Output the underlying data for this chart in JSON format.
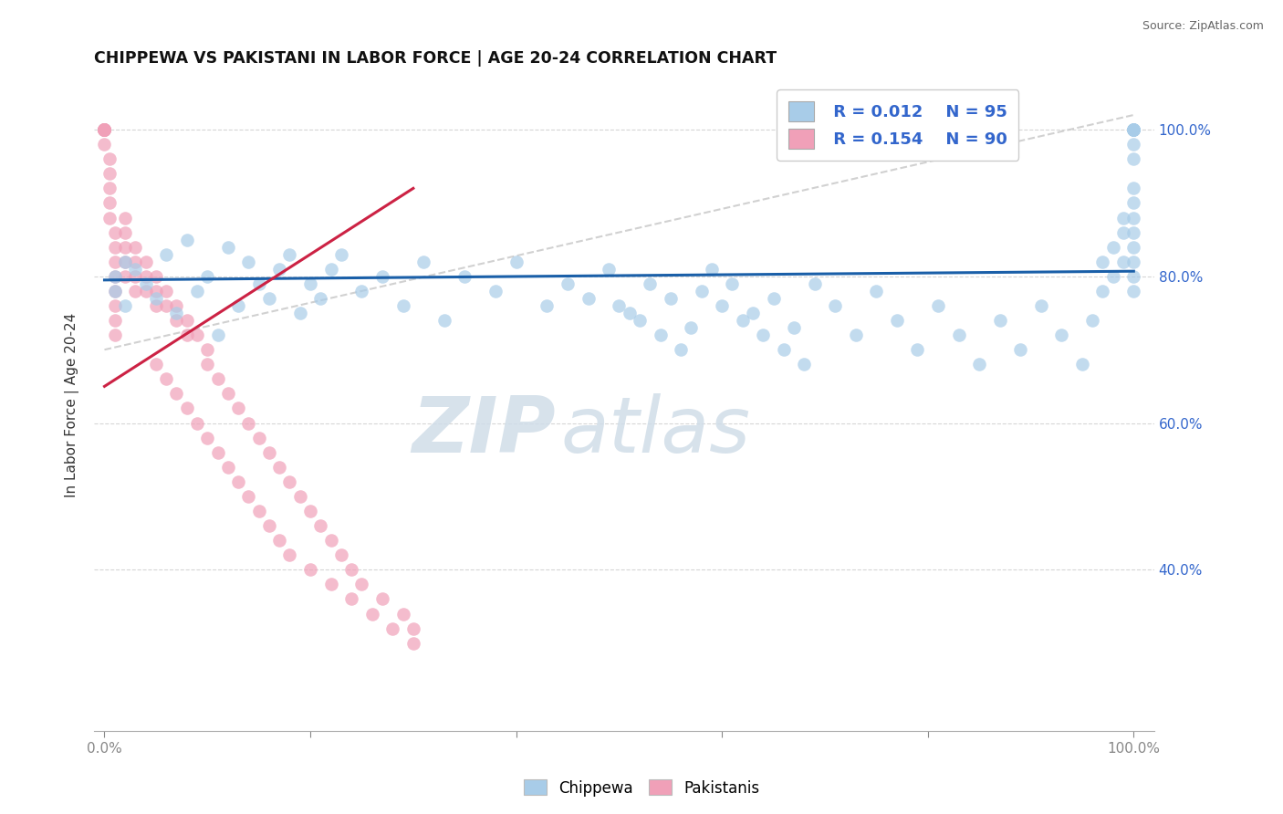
{
  "title": "CHIPPEWA VS PAKISTANI IN LABOR FORCE | AGE 20-24 CORRELATION CHART",
  "source": "Source: ZipAtlas.com",
  "ylabel": "In Labor Force | Age 20-24",
  "blue_color": "#a8cce8",
  "pink_color": "#f0a0b8",
  "trend_blue_color": "#1a5fa8",
  "trend_pink_color": "#cc2244",
  "ref_line_color": "#cccccc",
  "background_color": "#ffffff",
  "grid_color": "#cccccc",
  "legend_R1": "R = 0.012",
  "legend_N1": "N = 95",
  "legend_R2": "R = 0.154",
  "legend_N2": "N = 90",
  "watermark_zip": "ZIP",
  "watermark_atlas": "atlas",
  "chippewa_x": [
    0.01,
    0.01,
    0.02,
    0.02,
    0.03,
    0.04,
    0.05,
    0.06,
    0.07,
    0.08,
    0.09,
    0.1,
    0.11,
    0.12,
    0.13,
    0.14,
    0.15,
    0.16,
    0.17,
    0.18,
    0.19,
    0.2,
    0.21,
    0.22,
    0.23,
    0.25,
    0.27,
    0.29,
    0.31,
    0.33,
    0.35,
    0.38,
    0.4,
    0.43,
    0.45,
    0.47,
    0.49,
    0.51,
    0.53,
    0.55,
    0.57,
    0.59,
    0.61,
    0.63,
    0.65,
    0.67,
    0.69,
    0.71,
    0.73,
    0.75,
    0.77,
    0.79,
    0.81,
    0.83,
    0.85,
    0.87,
    0.89,
    0.91,
    0.93,
    0.95,
    0.96,
    0.97,
    0.97,
    0.98,
    0.98,
    0.99,
    0.99,
    0.99,
    1.0,
    1.0,
    1.0,
    1.0,
    1.0,
    1.0,
    1.0,
    1.0,
    1.0,
    1.0,
    1.0,
    1.0,
    1.0,
    1.0,
    1.0,
    1.0,
    1.0,
    0.5,
    0.52,
    0.54,
    0.56,
    0.58,
    0.6,
    0.62,
    0.64,
    0.66,
    0.68
  ],
  "chippewa_y": [
    0.8,
    0.78,
    0.82,
    0.76,
    0.81,
    0.79,
    0.77,
    0.83,
    0.75,
    0.85,
    0.78,
    0.8,
    0.72,
    0.84,
    0.76,
    0.82,
    0.79,
    0.77,
    0.81,
    0.83,
    0.75,
    0.79,
    0.77,
    0.81,
    0.83,
    0.78,
    0.8,
    0.76,
    0.82,
    0.74,
    0.8,
    0.78,
    0.82,
    0.76,
    0.79,
    0.77,
    0.81,
    0.75,
    0.79,
    0.77,
    0.73,
    0.81,
    0.79,
    0.75,
    0.77,
    0.73,
    0.79,
    0.76,
    0.72,
    0.78,
    0.74,
    0.7,
    0.76,
    0.72,
    0.68,
    0.74,
    0.7,
    0.76,
    0.72,
    0.68,
    0.74,
    0.82,
    0.78,
    0.84,
    0.8,
    0.86,
    0.82,
    0.88,
    0.9,
    0.86,
    0.88,
    0.84,
    0.82,
    0.8,
    0.78,
    0.92,
    0.96,
    0.98,
    1.0,
    1.0,
    1.0,
    1.0,
    1.0,
    1.0,
    1.0,
    0.76,
    0.74,
    0.72,
    0.7,
    0.78,
    0.76,
    0.74,
    0.72,
    0.7,
    0.68
  ],
  "pakistani_x": [
    0.0,
    0.0,
    0.0,
    0.0,
    0.0,
    0.0,
    0.0,
    0.0,
    0.0,
    0.0,
    0.0,
    0.0,
    0.0,
    0.0,
    0.0,
    0.005,
    0.005,
    0.005,
    0.005,
    0.005,
    0.01,
    0.01,
    0.01,
    0.01,
    0.01,
    0.01,
    0.01,
    0.01,
    0.02,
    0.02,
    0.02,
    0.02,
    0.02,
    0.03,
    0.03,
    0.03,
    0.03,
    0.04,
    0.04,
    0.04,
    0.05,
    0.05,
    0.05,
    0.06,
    0.06,
    0.07,
    0.07,
    0.08,
    0.08,
    0.09,
    0.1,
    0.1,
    0.11,
    0.12,
    0.13,
    0.14,
    0.15,
    0.16,
    0.17,
    0.18,
    0.19,
    0.2,
    0.21,
    0.22,
    0.23,
    0.24,
    0.25,
    0.27,
    0.29,
    0.3,
    0.05,
    0.06,
    0.07,
    0.08,
    0.09,
    0.1,
    0.11,
    0.12,
    0.13,
    0.14,
    0.15,
    0.16,
    0.17,
    0.18,
    0.2,
    0.22,
    0.24,
    0.26,
    0.28,
    0.3
  ],
  "pakistani_y": [
    1.0,
    1.0,
    1.0,
    1.0,
    1.0,
    1.0,
    1.0,
    1.0,
    1.0,
    1.0,
    1.0,
    1.0,
    1.0,
    1.0,
    0.98,
    0.96,
    0.94,
    0.92,
    0.9,
    0.88,
    0.86,
    0.84,
    0.82,
    0.8,
    0.78,
    0.76,
    0.74,
    0.72,
    0.88,
    0.86,
    0.84,
    0.82,
    0.8,
    0.84,
    0.82,
    0.8,
    0.78,
    0.82,
    0.8,
    0.78,
    0.8,
    0.78,
    0.76,
    0.78,
    0.76,
    0.76,
    0.74,
    0.74,
    0.72,
    0.72,
    0.7,
    0.68,
    0.66,
    0.64,
    0.62,
    0.6,
    0.58,
    0.56,
    0.54,
    0.52,
    0.5,
    0.48,
    0.46,
    0.44,
    0.42,
    0.4,
    0.38,
    0.36,
    0.34,
    0.32,
    0.68,
    0.66,
    0.64,
    0.62,
    0.6,
    0.58,
    0.56,
    0.54,
    0.52,
    0.5,
    0.48,
    0.46,
    0.44,
    0.42,
    0.4,
    0.38,
    0.36,
    0.34,
    0.32,
    0.3
  ],
  "blue_trend_x": [
    0.0,
    1.0
  ],
  "blue_trend_y": [
    0.795,
    0.807
  ],
  "pink_trend_x": [
    0.0,
    0.3
  ],
  "pink_trend_y": [
    0.65,
    0.92
  ],
  "ref_line_x": [
    0.0,
    1.0
  ],
  "ref_line_y": [
    0.7,
    1.02
  ],
  "xlim": [
    -0.01,
    1.02
  ],
  "ylim": [
    0.18,
    1.07
  ],
  "xticks": [
    0.0,
    0.2,
    0.4,
    0.6,
    0.8,
    1.0
  ],
  "xtick_labels": [
    "0.0%",
    "",
    "",
    "",
    "",
    "100.0%"
  ],
  "ytick_values": [
    0.4,
    0.6,
    0.8,
    1.0
  ],
  "ytick_labels": [
    "40.0%",
    "60.0%",
    "80.0%",
    "100.0%"
  ]
}
